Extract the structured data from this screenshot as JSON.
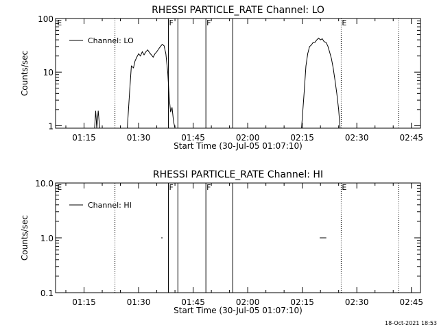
{
  "footer": {
    "timestamp": "18-Oct-2021 18:53"
  },
  "chart_data": [
    {
      "type": "line",
      "title": "RHESSI PARTICLE_RATE Channel: LO",
      "xlabel": "Start Time (30-Jul-05 01:07:10)",
      "ylabel": "Counts/sec",
      "yscale": "log",
      "ylim": [
        0.9,
        100
      ],
      "xlim_minutes": [
        7.17,
        107.5
      ],
      "xticks": [
        {
          "t": 15,
          "label": "01:15"
        },
        {
          "t": 30,
          "label": "01:30"
        },
        {
          "t": 45,
          "label": "01:45"
        },
        {
          "t": 60,
          "label": "02:00"
        },
        {
          "t": 75,
          "label": "02:15"
        },
        {
          "t": 90,
          "label": "02:30"
        },
        {
          "t": 105,
          "label": "02:45"
        }
      ],
      "yticks": [
        {
          "v": 1,
          "label": "1"
        },
        {
          "v": 10,
          "label": "10"
        },
        {
          "v": 100,
          "label": "100"
        }
      ],
      "legend": {
        "label": "Channel: LO",
        "placement": "top-left"
      },
      "flags": [
        {
          "t": 7.4,
          "label": "E",
          "style": "none"
        },
        {
          "t": 23.5,
          "label": "",
          "style": "dotted"
        },
        {
          "t": 38.2,
          "label": "F",
          "style": "solid"
        },
        {
          "t": 40.8,
          "label": "",
          "style": "solid"
        },
        {
          "t": 48.5,
          "label": "F",
          "style": "solid"
        },
        {
          "t": 55.9,
          "label": "",
          "style": "solid"
        },
        {
          "t": 85.7,
          "label": "E",
          "style": "dotted"
        },
        {
          "t": 101.5,
          "label": "",
          "style": "dotted"
        }
      ],
      "segments": [
        [
          [
            17.9,
            0.9
          ],
          [
            18.2,
            1.9
          ],
          [
            18.5,
            0.9
          ],
          [
            18.9,
            1.9
          ],
          [
            19.3,
            0.9
          ]
        ],
        [
          [
            26.9,
            0.9
          ],
          [
            27.5,
            4
          ],
          [
            28.0,
            13
          ],
          [
            28.6,
            12
          ],
          [
            29.0,
            16
          ],
          [
            29.5,
            19
          ],
          [
            30.0,
            22
          ],
          [
            30.5,
            20
          ],
          [
            31.0,
            24
          ],
          [
            31.5,
            21
          ],
          [
            32.0,
            24
          ],
          [
            32.5,
            26
          ],
          [
            33.0,
            23
          ],
          [
            33.5,
            21
          ],
          [
            34.0,
            19
          ],
          [
            34.5,
            22
          ],
          [
            35.0,
            24
          ],
          [
            35.5,
            27
          ],
          [
            36.0,
            30
          ],
          [
            36.5,
            33
          ],
          [
            37.0,
            31
          ],
          [
            37.5,
            22
          ],
          [
            38.0,
            10
          ],
          [
            38.4,
            3.5
          ],
          [
            38.8,
            1.8
          ],
          [
            39.2,
            2.2
          ],
          [
            39.6,
            1.2
          ],
          [
            40.0,
            0.9
          ]
        ],
        [
          [
            74.8,
            0.9
          ],
          [
            75.5,
            4
          ],
          [
            76.0,
            13
          ],
          [
            76.5,
            22
          ],
          [
            77.0,
            30
          ],
          [
            77.5,
            32
          ],
          [
            78.0,
            36
          ],
          [
            78.5,
            36
          ],
          [
            79.0,
            40
          ],
          [
            79.5,
            43
          ],
          [
            80.0,
            40
          ],
          [
            80.5,
            42
          ],
          [
            81.0,
            37
          ],
          [
            81.5,
            36
          ],
          [
            82.0,
            31
          ],
          [
            82.5,
            24
          ],
          [
            83.0,
            18
          ],
          [
            83.5,
            12
          ],
          [
            84.0,
            7
          ],
          [
            84.5,
            4
          ],
          [
            85.0,
            2
          ],
          [
            85.4,
            0.9
          ]
        ]
      ]
    },
    {
      "type": "line",
      "title": "RHESSI PARTICLE_RATE Channel: HI",
      "xlabel": "Start Time (30-Jul-05 01:07:10)",
      "ylabel": "Counts/sec",
      "yscale": "log",
      "ylim": [
        0.1,
        10
      ],
      "xlim_minutes": [
        7.17,
        107.5
      ],
      "xticks": [
        {
          "t": 15,
          "label": "01:15"
        },
        {
          "t": 30,
          "label": "01:30"
        },
        {
          "t": 45,
          "label": "01:45"
        },
        {
          "t": 60,
          "label": "02:00"
        },
        {
          "t": 75,
          "label": "02:15"
        },
        {
          "t": 90,
          "label": "02:30"
        },
        {
          "t": 105,
          "label": "02:45"
        }
      ],
      "yticks": [
        {
          "v": 0.1,
          "label": "0.1"
        },
        {
          "v": 1,
          "label": "1.0"
        },
        {
          "v": 10,
          "label": "10.0"
        }
      ],
      "legend": {
        "label": "Channel: HI",
        "placement": "top-left"
      },
      "flags": [
        {
          "t": 7.4,
          "label": "E",
          "style": "none"
        },
        {
          "t": 23.5,
          "label": "",
          "style": "dotted"
        },
        {
          "t": 38.2,
          "label": "F",
          "style": "solid"
        },
        {
          "t": 40.8,
          "label": "",
          "style": "solid"
        },
        {
          "t": 48.5,
          "label": "F",
          "style": "solid"
        },
        {
          "t": 55.9,
          "label": "",
          "style": "solid"
        },
        {
          "t": 85.7,
          "label": "E",
          "style": "dotted"
        },
        {
          "t": 101.5,
          "label": "",
          "style": "dotted"
        }
      ],
      "segments": [
        [
          [
            36.2,
            1.0
          ],
          [
            36.6,
            1.0
          ]
        ],
        [
          [
            79.8,
            1.0
          ],
          [
            81.6,
            1.0
          ]
        ]
      ]
    }
  ]
}
